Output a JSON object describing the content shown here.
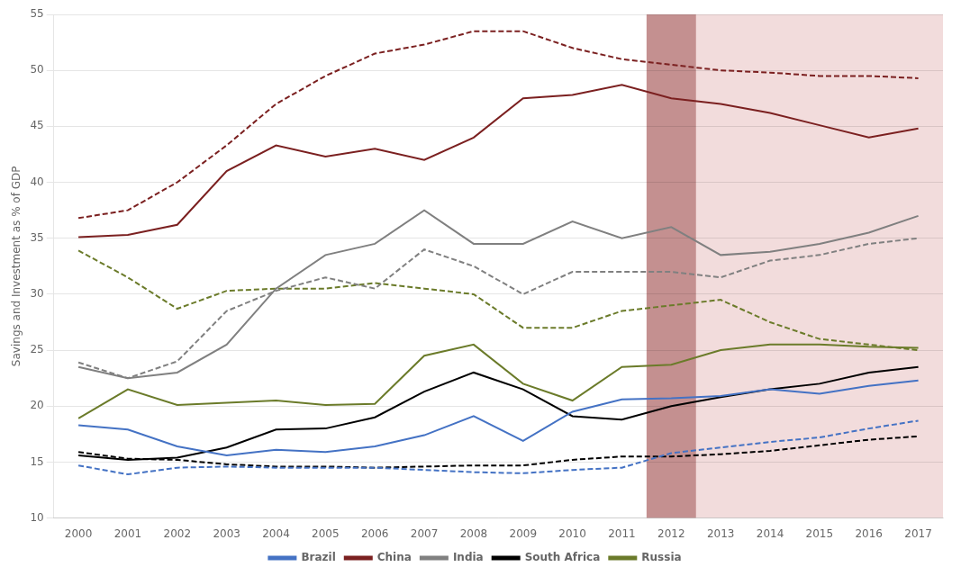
{
  "chart_data": {
    "type": "line",
    "y_label": "Savings and Investment as % of GDP",
    "x": [
      2000,
      2001,
      2002,
      2003,
      2004,
      2005,
      2006,
      2007,
      2008,
      2009,
      2010,
      2011,
      2012,
      2013,
      2014,
      2015,
      2016,
      2017
    ],
    "series": [
      {
        "name": "Brazil",
        "color": "#4472C4",
        "line_style": "solid",
        "values": [
          18.3,
          17.9,
          16.4,
          15.6,
          16.1,
          15.9,
          16.4,
          17.4,
          19.1,
          16.9,
          19.5,
          20.6,
          20.7,
          20.9,
          21.5,
          21.1,
          21.8,
          22.3
        ]
      },
      {
        "name": "Brazil",
        "color": "#4472C4",
        "line_style": "dashed",
        "values": [
          14.7,
          13.9,
          14.5,
          14.6,
          14.5,
          14.5,
          14.5,
          14.3,
          14.1,
          14.0,
          14.3,
          14.5,
          15.8,
          16.3,
          16.8,
          17.2,
          18.0,
          18.7
        ]
      },
      {
        "name": "China",
        "color": "#7B2020",
        "line_style": "solid",
        "values": [
          35.1,
          35.3,
          36.2,
          41.0,
          43.3,
          42.3,
          43.0,
          42.0,
          44.0,
          47.5,
          47.8,
          48.7,
          47.5,
          47.0,
          46.2,
          45.1,
          44.0,
          44.8
        ]
      },
      {
        "name": "China",
        "color": "#7B2020",
        "line_style": "dashed",
        "values": [
          36.8,
          37.5,
          40.0,
          43.3,
          47.0,
          49.5,
          51.5,
          52.3,
          53.5,
          53.5,
          52.0,
          51.0,
          50.5,
          50.0,
          49.8,
          49.5,
          49.5,
          49.3
        ]
      },
      {
        "name": "India",
        "color": "#808080",
        "line_style": "solid",
        "values": [
          23.5,
          22.5,
          23.0,
          25.5,
          30.5,
          33.5,
          34.5,
          37.5,
          34.5,
          34.5,
          36.5,
          35.0,
          36.0,
          33.5,
          33.8,
          34.5,
          35.5,
          37.0
        ]
      },
      {
        "name": "India",
        "color": "#808080",
        "line_style": "dashed",
        "values": [
          23.9,
          22.5,
          24.0,
          28.5,
          30.3,
          31.5,
          30.5,
          34.0,
          32.5,
          30.0,
          32.0,
          32.0,
          32.0,
          31.5,
          33.0,
          33.5,
          34.5,
          35.0
        ]
      },
      {
        "name": "South Africa",
        "color": "#000000",
        "line_style": "solid",
        "values": [
          15.6,
          15.2,
          15.4,
          16.3,
          17.9,
          18.0,
          19.0,
          21.3,
          23.0,
          21.5,
          19.1,
          18.8,
          20.0,
          20.8,
          21.5,
          22.0,
          23.0,
          23.5
        ]
      },
      {
        "name": "South Africa",
        "color": "#000000",
        "line_style": "dashed",
        "values": [
          15.9,
          15.3,
          15.2,
          14.8,
          14.6,
          14.6,
          14.5,
          14.6,
          14.7,
          14.7,
          15.2,
          15.5,
          15.5,
          15.7,
          16.0,
          16.5,
          17.0,
          17.3
        ]
      },
      {
        "name": "Russia",
        "color": "#6B7B2A",
        "line_style": "solid",
        "values": [
          18.9,
          21.5,
          20.1,
          20.3,
          20.5,
          20.1,
          20.2,
          24.5,
          25.5,
          22.0,
          20.5,
          23.5,
          23.7,
          25.0,
          25.5,
          25.5,
          25.3,
          25.2
        ]
      },
      {
        "name": "Russia",
        "color": "#6B7B2A",
        "line_style": "dashed",
        "values": [
          33.9,
          31.5,
          28.7,
          30.3,
          30.5,
          30.5,
          31.0,
          30.5,
          30.0,
          27.0,
          27.0,
          28.5,
          29.0,
          29.5,
          27.5,
          26.0,
          25.5,
          25.0
        ]
      }
    ],
    "spans": [
      {
        "from": 2011.5,
        "to": 2017.5,
        "color": "#F2DCDC"
      },
      {
        "from": 2011.5,
        "to": 2012.5,
        "color": "#C49090"
      }
    ],
    "xlim": [
      1999.5,
      2017.5
    ],
    "xticks": [
      2000,
      2001,
      2002,
      2003,
      2004,
      2005,
      2006,
      2007,
      2008,
      2009,
      2010,
      2011,
      2012,
      2013,
      2014,
      2015,
      2016,
      2017
    ],
    "ylim": [
      10,
      55
    ],
    "yticks": [
      10,
      15,
      20,
      25,
      30,
      35,
      40,
      45,
      50,
      55
    ],
    "grid": true,
    "legend": "bottom"
  }
}
